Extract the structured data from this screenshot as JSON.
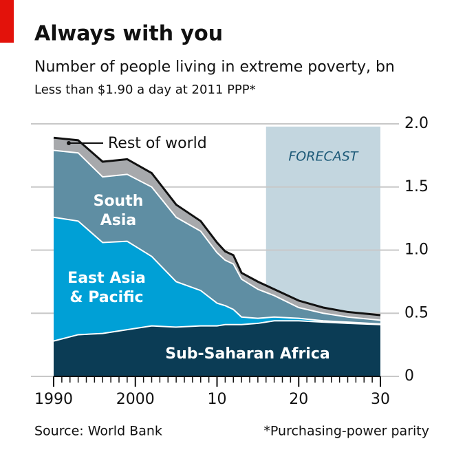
{
  "chart_data": {
    "type": "stacked-area",
    "title": "Always with you",
    "subtitle": "Number of people living in extreme poverty, bn",
    "note": "Less than $1.90 a day at 2011 PPP*",
    "source": "Source: World Bank",
    "footnote": "*Purchasing-power parity",
    "forecast_label": "FORECAST",
    "forecast_start": 2016,
    "x": [
      1990,
      1993,
      1996,
      1999,
      2002,
      2005,
      2008,
      2010,
      2011,
      2012,
      2013,
      2015,
      2017,
      2020,
      2023,
      2026,
      2030
    ],
    "series": [
      {
        "name": "Sub-Saharan Africa",
        "color": "#0b3c55",
        "values": [
          0.28,
          0.33,
          0.34,
          0.37,
          0.4,
          0.39,
          0.4,
          0.4,
          0.41,
          0.41,
          0.41,
          0.42,
          0.44,
          0.44,
          0.43,
          0.42,
          0.41
        ]
      },
      {
        "name": "East Asia & Pacific",
        "color": "#00a0d6",
        "values": [
          0.98,
          0.9,
          0.72,
          0.7,
          0.55,
          0.36,
          0.28,
          0.18,
          0.15,
          0.12,
          0.06,
          0.04,
          0.03,
          0.02,
          0.01,
          0.01,
          0.005
        ]
      },
      {
        "name": "South Asia",
        "color": "#5f8ea3",
        "values": [
          0.53,
          0.54,
          0.52,
          0.53,
          0.55,
          0.51,
          0.47,
          0.4,
          0.36,
          0.36,
          0.3,
          0.23,
          0.17,
          0.085,
          0.06,
          0.04,
          0.03
        ]
      },
      {
        "name": "Rest of world",
        "color": "#a7a9ac",
        "values": [
          0.1,
          0.1,
          0.12,
          0.12,
          0.11,
          0.1,
          0.08,
          0.08,
          0.07,
          0.07,
          0.05,
          0.06,
          0.05,
          0.055,
          0.045,
          0.04,
          0.04
        ]
      }
    ],
    "xlim": [
      1990,
      2030
    ],
    "xticks": [
      1990,
      2000,
      {
        "value": 2010,
        "label": "10"
      },
      {
        "value": 2020,
        "label": "20"
      },
      {
        "value": 2030,
        "label": "30"
      }
    ],
    "xminorticks": [
      1990,
      1991,
      1992,
      1993,
      1994,
      1995,
      1996,
      1997,
      1998,
      1999,
      2000,
      2001,
      2002,
      2003,
      2004,
      2005,
      2006,
      2007,
      2008,
      2009,
      2010,
      2011,
      2012,
      2013,
      2014,
      2015,
      2016,
      2017,
      2018,
      2019,
      2020,
      2021,
      2022,
      2023,
      2024,
      2025,
      2026,
      2027,
      2028,
      2029,
      2030
    ],
    "ylim": [
      0,
      2
    ],
    "yticks": [
      0,
      0.5,
      {
        "value": 1,
        "label": "1.0"
      },
      1.5,
      {
        "value": 2,
        "label": "2.0"
      }
    ],
    "grid": true
  }
}
